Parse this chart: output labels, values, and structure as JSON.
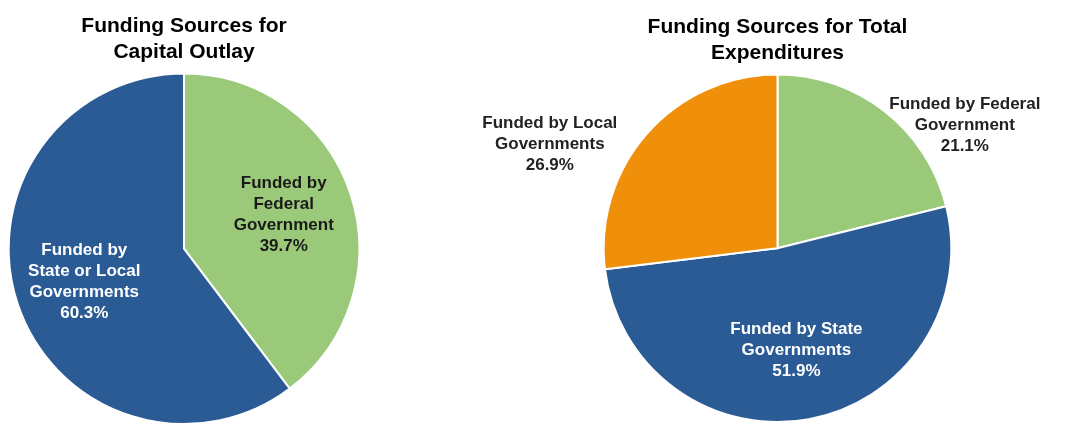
{
  "chart_data": [
    {
      "type": "pie",
      "title": "Funding Sources for\nCapital Outlay",
      "categories": [
        "Funded by\nFederal\nGovernment",
        "Funded by\nState or Local\nGovernments"
      ],
      "values": [
        39.7,
        60.3
      ],
      "value_labels": [
        "39.7%",
        "60.3%"
      ],
      "colors": [
        "#9bc97a",
        "#2b5b95"
      ]
    },
    {
      "type": "pie",
      "title": "Funding Sources for Total\nExpenditures",
      "categories": [
        "Funded by Federal\nGovernment",
        "Funded by State\nGovernments",
        "Funded by Local\nGovernments"
      ],
      "values": [
        21.1,
        51.9,
        26.9
      ],
      "value_labels": [
        "21.1%",
        "51.9%",
        "26.9%"
      ],
      "colors": [
        "#9bc97a",
        "#2b5b95",
        "#ef8f0a"
      ]
    }
  ]
}
